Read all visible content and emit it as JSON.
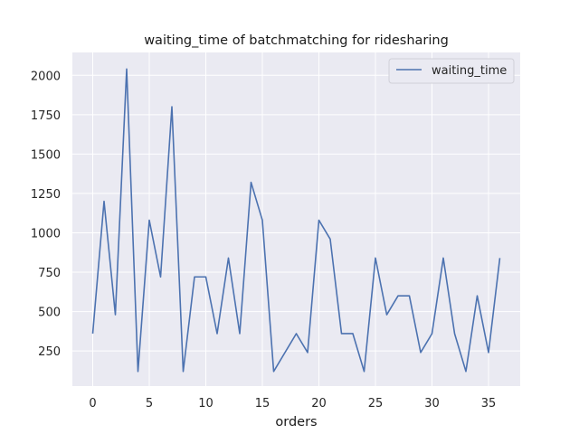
{
  "chart_data": {
    "type": "line",
    "title": "waiting_time of batchmatching for ridesharing",
    "xlabel": "orders",
    "ylabel": "",
    "xlim": [
      -1.8,
      37.8
    ],
    "ylim": [
      27,
      2145
    ],
    "xticks": [
      0,
      5,
      10,
      15,
      20,
      25,
      30,
      35
    ],
    "yticks": [
      250,
      500,
      750,
      1000,
      1250,
      1500,
      1750,
      2000
    ],
    "grid": true,
    "legend_position": "top-right",
    "series": [
      {
        "name": "waiting_time",
        "color": "#4c72b0",
        "x": [
          0,
          1,
          2,
          3,
          4,
          5,
          6,
          7,
          8,
          9,
          10,
          11,
          12,
          13,
          14,
          15,
          16,
          17,
          18,
          19,
          20,
          21,
          22,
          23,
          24,
          25,
          26,
          27,
          28,
          29,
          30,
          31,
          32,
          33,
          34,
          35,
          36
        ],
        "values": [
          360,
          1200,
          480,
          2040,
          120,
          1080,
          720,
          1800,
          120,
          720,
          720,
          360,
          840,
          360,
          1320,
          1080,
          120,
          240,
          360,
          240,
          1080,
          960,
          360,
          360,
          120,
          840,
          480,
          600,
          600,
          240,
          360,
          840,
          360,
          120,
          600,
          240,
          840
        ]
      }
    ]
  }
}
